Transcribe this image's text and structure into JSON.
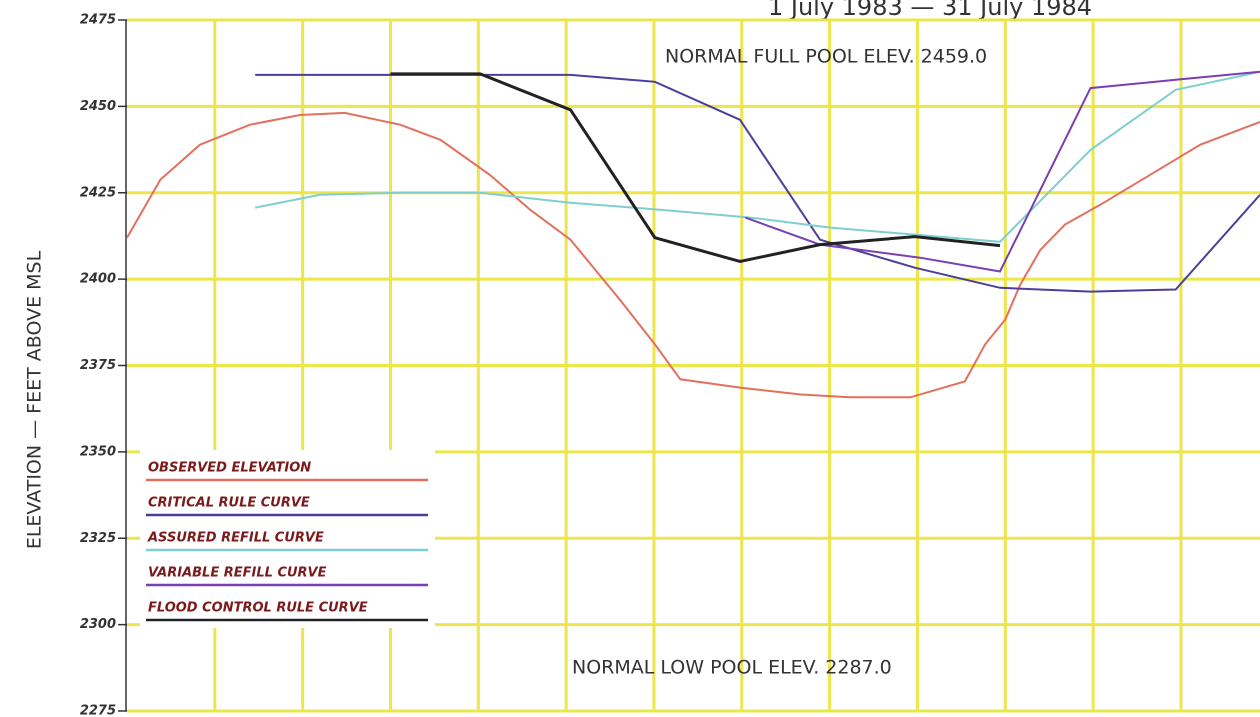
{
  "chart_data": {
    "type": "line",
    "title": "1 July 1983 — 31 July 1984",
    "ylabel": "ELEVATION — FEET ABOVE MSL",
    "annotations": [
      "NORMAL FULL POOL ELEV. 2459.0",
      "NORMAL LOW POOL ELEV. 2287.0"
    ],
    "ylim": [
      2275,
      2475
    ],
    "yticks": [
      2275,
      2300,
      2325,
      2350,
      2375,
      2400,
      2425,
      2450,
      2475
    ],
    "xlim": [
      0,
      12.9
    ],
    "xticks": [
      1,
      2,
      3,
      4,
      5,
      6,
      7,
      8,
      9,
      10,
      11,
      12
    ],
    "grid": true,
    "grid_color": "#ece64a",
    "legend": "lower left",
    "series": [
      {
        "name": "OBSERVED ELEVATION",
        "color": "#e2705e",
        "x": [
          0,
          0.38,
          0.83,
          1.4,
          1.97,
          2.48,
          3.11,
          3.57,
          4.13,
          4.59,
          5.05,
          5.61,
          6.01,
          6.3,
          6.98,
          7.67,
          8.23,
          8.92,
          9.54,
          9.77,
          10.0,
          10.17,
          10.4,
          10.68,
          11.08,
          11.65,
          12.22,
          12.9
        ],
        "values": [
          2412,
          2428.8,
          2438.9,
          2444.7,
          2447.5,
          2448.1,
          2444.7,
          2440.3,
          2430.2,
          2420.1,
          2411.4,
          2394.1,
          2381.1,
          2371,
          2368.6,
          2366.6,
          2365.8,
          2365.8,
          2370.4,
          2381.1,
          2388.3,
          2398.4,
          2408.5,
          2415.8,
          2421.5,
          2430.2,
          2438.9,
          2445.5
        ]
      },
      {
        "name": "CRITICAL RULE CURVE",
        "color": "#4a3f9a",
        "x": [
          1.46,
          5.05,
          6.01,
          6.98,
          7.89,
          8.97,
          9.94,
          10.97,
          11.94,
          12.9
        ],
        "values": [
          2459.1,
          2459.1,
          2457.1,
          2446.1,
          2411.4,
          2403.3,
          2397.5,
          2396.4,
          2397,
          2424.4
        ]
      },
      {
        "name": "ASSURED REFILL CURVE",
        "color": "#7fcfcf",
        "x": [
          1.46,
          2.2,
          3.11,
          4.02,
          5.05,
          6.07,
          7.1,
          8.01,
          9.94,
          10.97,
          11.94,
          12.9
        ],
        "values": [
          2420.7,
          2424.4,
          2425,
          2425,
          2422.1,
          2420.1,
          2417.8,
          2414.9,
          2410.8,
          2437.4,
          2454.8,
          2460
        ]
      },
      {
        "name": "VARIABLE REFILL CURVE",
        "color": "#7a3fb0",
        "x": [
          7.04,
          7.89,
          9.03,
          9.94,
          10.97,
          11.94,
          12.9
        ],
        "values": [
          2417.8,
          2410,
          2406.2,
          2402.2,
          2455.3,
          2457.7,
          2460
        ]
      },
      {
        "name": "FLOOD CONTROL RULE CURVE",
        "color": "#222222",
        "x": [
          3.0,
          4.02,
          5.05,
          6.01,
          6.98,
          7.89,
          8.97,
          9.94
        ],
        "values": [
          2459.4,
          2459.4,
          2449,
          2412,
          2405.1,
          2410,
          2412.3,
          2409.7
        ]
      }
    ]
  }
}
